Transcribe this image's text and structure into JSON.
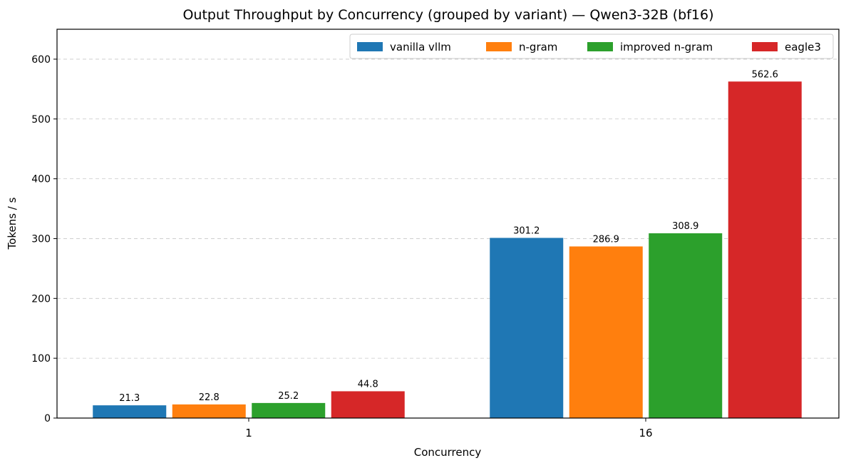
{
  "chart_data": {
    "type": "bar",
    "title": "Output Throughput by Concurrency (grouped by variant) — Qwen3-32B (bf16)",
    "xlabel": "Concurrency",
    "ylabel": "Tokens / s",
    "categories": [
      "1",
      "16"
    ],
    "series": [
      {
        "name": "vanilla vllm",
        "color": "#1f77b4",
        "values": [
          21.3,
          301.2
        ],
        "labels": [
          "21.3",
          "301.2"
        ]
      },
      {
        "name": "n-gram",
        "color": "#ff7f0e",
        "values": [
          22.8,
          286.9
        ],
        "labels": [
          "22.8",
          "286.9"
        ]
      },
      {
        "name": "improved n-gram",
        "color": "#2ca02c",
        "values": [
          25.2,
          308.9
        ],
        "labels": [
          "25.2",
          "308.9"
        ]
      },
      {
        "name": "eagle3",
        "color": "#d62728",
        "values": [
          44.8,
          562.6
        ],
        "labels": [
          "44.8",
          "562.6"
        ]
      }
    ],
    "ylim": [
      0,
      650
    ],
    "yticks": [
      0,
      100,
      200,
      300,
      400,
      500,
      600
    ],
    "ytick_labels": [
      "0",
      "100",
      "200",
      "300",
      "400",
      "500",
      "600"
    ],
    "grid": true,
    "legend_position": "top-right"
  }
}
